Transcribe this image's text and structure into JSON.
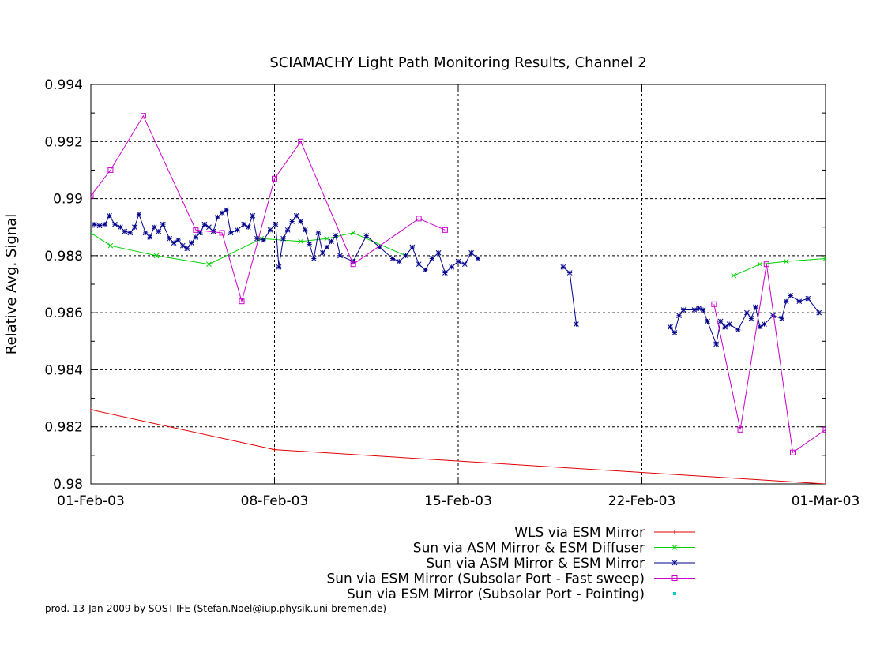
{
  "chart_data": {
    "type": "line",
    "title": "SCIAMACHY Light Path Monitoring Results, Channel 2",
    "xlabel": "",
    "ylabel": "Relative Avg. Signal",
    "x_axis_type": "date",
    "xlim": [
      "2003-02-01",
      "2003-03-01"
    ],
    "ylim": [
      0.98,
      0.994
    ],
    "x_tick_labels": [
      "01-Feb-03",
      "08-Feb-03",
      "15-Feb-03",
      "22-Feb-03",
      "01-Mar-03"
    ],
    "y_tick_labels": [
      "0.98",
      "0.982",
      "0.984",
      "0.986",
      "0.988",
      "0.99",
      "0.992",
      "0.994"
    ],
    "grid": "dashed vertical and horizontal at major ticks",
    "legend_position": "below plot, right-aligned",
    "series": [
      {
        "name": "WLS via ESM Mirror",
        "color": "#e00000",
        "marker": "plus",
        "segments": [
          [
            [
              "2003-02-01",
              0.9826
            ],
            [
              "2003-02-08",
              0.9812
            ],
            [
              "2003-03-01",
              0.98
            ]
          ]
        ]
      },
      {
        "name": "Sun via ASM Mirror & ESM Diffuser",
        "color": "#00d000",
        "marker": "cross",
        "segments": [
          [
            [
              "2003-02-01",
              0.9888
            ],
            [
              "2003-02-01 18:00",
              0.98835
            ],
            [
              "2003-02-03 12:00",
              0.988
            ],
            [
              "2003-02-05 12:00",
              0.9877
            ],
            [
              "2003-02-07 12:00",
              0.9886
            ],
            [
              "2003-02-09",
              0.9885
            ],
            [
              "2003-02-10",
              0.9886
            ],
            [
              "2003-02-11",
              0.9888
            ],
            [
              "2003-02-13",
              0.988
            ]
          ],
          [
            [
              "2003-02-25 12:00",
              0.9873
            ],
            [
              "2003-02-26 12:00",
              0.9877
            ],
            [
              "2003-02-27 12:00",
              0.9878
            ],
            [
              "2003-03-01",
              0.9879
            ]
          ]
        ]
      },
      {
        "name": "Sun via ASM Mirror & ESM Mirror",
        "color": "#00008b",
        "marker": "star",
        "segments": [
          [
            [
              "2003-02-01 03:00",
              0.9891
            ],
            [
              "2003-02-01 08:00",
              0.98905
            ],
            [
              "2003-02-01 13:00",
              0.9891
            ],
            [
              "2003-02-01 17:00",
              0.9894
            ],
            [
              "2003-02-01 22:00",
              0.9891
            ],
            [
              "2003-02-02 03:00",
              0.989
            ],
            [
              "2003-02-02 07:00",
              0.98885
            ],
            [
              "2003-02-02 12:00",
              0.9888
            ],
            [
              "2003-02-02 16:00",
              0.989
            ],
            [
              "2003-02-02 20:00",
              0.98945
            ],
            [
              "2003-02-03 02:00",
              0.9888
            ],
            [
              "2003-02-03 06:00",
              0.98865
            ],
            [
              "2003-02-03 10:00",
              0.989
            ],
            [
              "2003-02-03 14:00",
              0.98885
            ],
            [
              "2003-02-03 18:00",
              0.9891
            ],
            [
              "2003-02-04 00:00",
              0.9886
            ],
            [
              "2003-02-04 04:00",
              0.98845
            ],
            [
              "2003-02-04 08:00",
              0.98855
            ],
            [
              "2003-02-04 12:00",
              0.98835
            ],
            [
              "2003-02-04 16:00",
              0.98825
            ],
            [
              "2003-02-04 20:00",
              0.98845
            ],
            [
              "2003-02-05 00:00",
              0.98865
            ],
            [
              "2003-02-05 04:00",
              0.9888
            ],
            [
              "2003-02-05 08:00",
              0.9891
            ],
            [
              "2003-02-05 12:00",
              0.989
            ],
            [
              "2003-02-05 16:00",
              0.98885
            ],
            [
              "2003-02-05 20:00",
              0.98935
            ],
            [
              "2003-02-06 00:00",
              0.9895
            ],
            [
              "2003-02-06 04:00",
              0.9896
            ],
            [
              "2003-02-06 08:00",
              0.9888
            ],
            [
              "2003-02-06 14:00",
              0.9889
            ],
            [
              "2003-02-06 20:00",
              0.9891
            ],
            [
              "2003-02-07 00:00",
              0.989
            ],
            [
              "2003-02-07 04:00",
              0.9894
            ],
            [
              "2003-02-07 08:00",
              0.9886
            ],
            [
              "2003-02-07 14:00",
              0.98855
            ],
            [
              "2003-02-07 20:00",
              0.9889
            ],
            [
              "2003-02-08 01:00",
              0.9891
            ],
            [
              "2003-02-08 04:00",
              0.9876
            ],
            [
              "2003-02-08 08:00",
              0.9886
            ],
            [
              "2003-02-08 12:00",
              0.9889
            ],
            [
              "2003-02-08 16:00",
              0.9892
            ],
            [
              "2003-02-08 20:00",
              0.9894
            ],
            [
              "2003-02-09 00:00",
              0.9892
            ],
            [
              "2003-02-09 04:00",
              0.9889
            ],
            [
              "2003-02-09 08:00",
              0.9884
            ],
            [
              "2003-02-09 12:00",
              0.9879
            ],
            [
              "2003-02-09 16:00",
              0.9888
            ],
            [
              "2003-02-09 20:00",
              0.9881
            ],
            [
              "2003-02-10 00:00",
              0.9883
            ],
            [
              "2003-02-10 04:00",
              0.9885
            ],
            [
              "2003-02-10 08:00",
              0.9887
            ],
            [
              "2003-02-10 12:00",
              0.988
            ],
            [
              "2003-02-11 00:00",
              0.9878
            ],
            [
              "2003-02-11 12:00",
              0.9887
            ],
            [
              "2003-02-12 00:00",
              0.9883
            ],
            [
              "2003-02-12 12:00",
              0.9879
            ],
            [
              "2003-02-12 18:00",
              0.9878
            ],
            [
              "2003-02-13 00:00",
              0.988
            ],
            [
              "2003-02-13 06:00",
              0.9883
            ],
            [
              "2003-02-13 12:00",
              0.9877
            ],
            [
              "2003-02-13 18:00",
              0.9875
            ],
            [
              "2003-02-14 00:00",
              0.9879
            ],
            [
              "2003-02-14 06:00",
              0.9881
            ],
            [
              "2003-02-14 12:00",
              0.9874
            ],
            [
              "2003-02-14 18:00",
              0.9876
            ],
            [
              "2003-02-15 00:00",
              0.9878
            ],
            [
              "2003-02-15 06:00",
              0.9877
            ],
            [
              "2003-02-15 12:00",
              0.9881
            ],
            [
              "2003-02-15 18:00",
              0.9879
            ]
          ],
          [
            [
              "2003-02-19 00:00",
              0.9876
            ],
            [
              "2003-02-19 06:00",
              0.9874
            ],
            [
              "2003-02-19 12:00",
              0.9856
            ]
          ],
          [
            [
              "2003-02-23 02:00",
              0.9855
            ],
            [
              "2003-02-23 06:00",
              0.9853
            ],
            [
              "2003-02-23 10:00",
              0.9859
            ],
            [
              "2003-02-23 14:00",
              0.9861
            ],
            [
              "2003-02-24 00:00",
              0.9861
            ],
            [
              "2003-02-24 04:00",
              0.98615
            ],
            [
              "2003-02-24 08:00",
              0.9861
            ],
            [
              "2003-02-24 12:00",
              0.9857
            ],
            [
              "2003-02-24 20:00",
              0.9849
            ],
            [
              "2003-02-25 00:00",
              0.9857
            ],
            [
              "2003-02-25 04:00",
              0.9855
            ],
            [
              "2003-02-25 08:00",
              0.9856
            ],
            [
              "2003-02-25 16:00",
              0.9854
            ],
            [
              "2003-02-26 00:00",
              0.986
            ],
            [
              "2003-02-26 04:00",
              0.9858
            ],
            [
              "2003-02-26 08:00",
              0.9862
            ],
            [
              "2003-02-26 12:00",
              0.9855
            ],
            [
              "2003-02-26 16:00",
              0.9856
            ],
            [
              "2003-02-27 00:00",
              0.9859
            ],
            [
              "2003-02-27 08:00",
              0.9858
            ],
            [
              "2003-02-27 12:00",
              0.9864
            ],
            [
              "2003-02-27 16:00",
              0.9866
            ],
            [
              "2003-02-28 00:00",
              0.9864
            ],
            [
              "2003-02-28 08:00",
              0.9865
            ],
            [
              "2003-02-28 18:00",
              0.986
            ]
          ]
        ]
      },
      {
        "name": "Sun via ESM Mirror (Subsolar Port - Fast sweep)",
        "color": "#cc00cc",
        "marker": "open-square",
        "segments": [
          [
            [
              "2003-02-01 00:00",
              0.9901
            ],
            [
              "2003-02-01 18:00",
              0.991
            ],
            [
              "2003-02-03 00:00",
              0.9929
            ],
            [
              "2003-02-05 00:00",
              0.9889
            ],
            [
              "2003-02-06 00:00",
              0.9888
            ],
            [
              "2003-02-06 18:00",
              0.9864
            ],
            [
              "2003-02-08 00:00",
              0.9907
            ],
            [
              "2003-02-09 00:00",
              0.992
            ],
            [
              "2003-02-11 00:00",
              0.9877
            ],
            [
              "2003-02-13 12:00",
              0.9893
            ],
            [
              "2003-02-14 12:00",
              0.9889
            ]
          ],
          [
            [
              "2003-02-24 18:00",
              0.9863
            ],
            [
              "2003-02-25 18:00",
              0.9819
            ],
            [
              "2003-02-26 18:00",
              0.9877
            ],
            [
              "2003-02-27 18:00",
              0.9811
            ],
            [
              "2003-03-01 00:00",
              0.9819
            ]
          ]
        ]
      },
      {
        "name": "Sun via ESM Mirror (Subsolar Port - Pointing)",
        "color": "#00cccc",
        "marker": "filled-square",
        "segments": []
      }
    ]
  },
  "footer": {
    "credit": "prod. 13-Jan-2009 by SOST-IFE (Stefan.Noel@iup.physik.uni-bremen.de)"
  }
}
